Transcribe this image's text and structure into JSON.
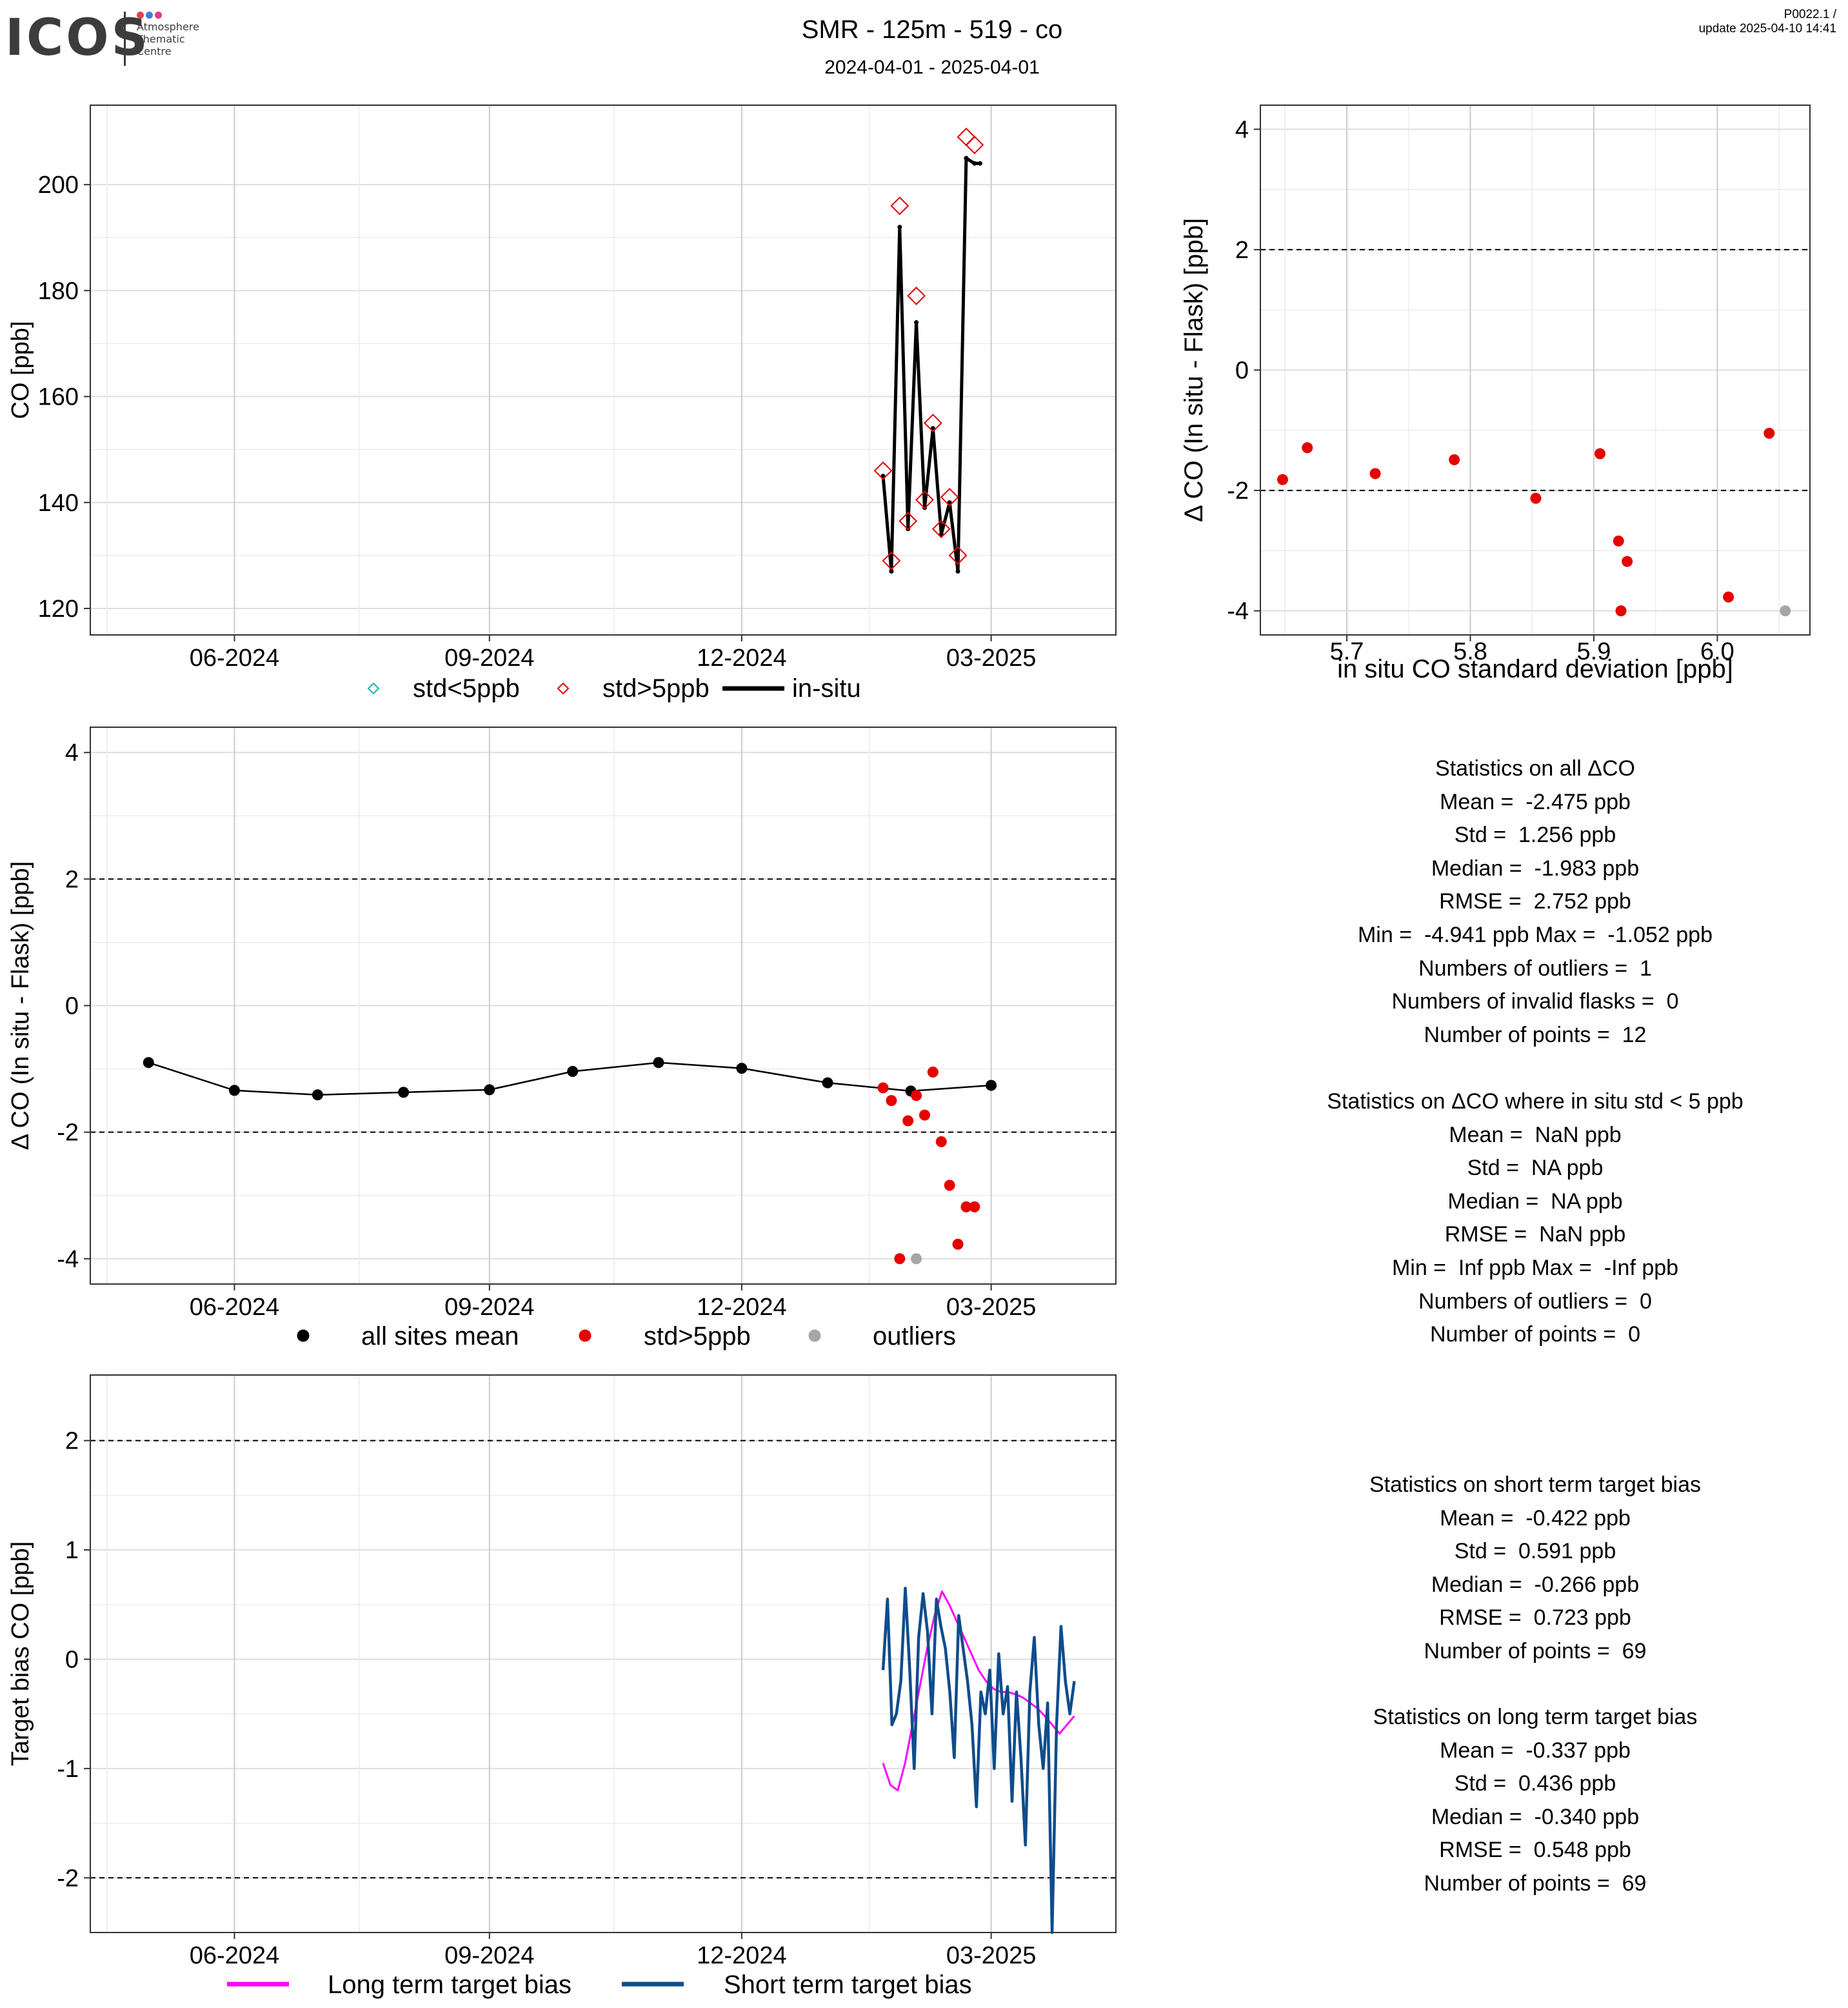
{
  "logo": {
    "text": "ICOS",
    "sub": [
      "Atmosphere",
      "Thematic",
      "Centre"
    ],
    "dot_colors": [
      "#e2404f",
      "#3f7fd2",
      "#e23a8d"
    ]
  },
  "header": {
    "title": "SMR - 125m - 519 - co",
    "subtitle": "2024-04-01 - 2025-04-01",
    "meta_line1": "P0022.1 /",
    "meta_line2": "update  2025-04-10 14:41"
  },
  "colors": {
    "flask_std_lt5": "#1bb5b5",
    "flask_std_gt5": "#e60000",
    "insitu": "#000000",
    "outlier": "#a6a6a6",
    "long_term": "#ff00ff",
    "short_term": "#0f4c8c"
  },
  "chart_data": [
    {
      "id": "timeseries",
      "type": "line",
      "ylabel": "CO [ppb]",
      "xlabel": "",
      "ylim": [
        115,
        215
      ],
      "yticks": [
        120,
        140,
        160,
        180,
        200
      ],
      "x_ticks": [
        "06-2024",
        "09-2024",
        "12-2024",
        "03-2025"
      ],
      "grid": true,
      "legend": [
        "std<5ppb",
        "std>5ppb",
        "in-situ"
      ],
      "legend_position": "bottom",
      "series": [
        {
          "name": "in-situ",
          "x": [
            "2025-01-21",
            "2025-01-24",
            "2025-01-27",
            "2025-01-30",
            "2025-02-02",
            "2025-02-05",
            "2025-02-08",
            "2025-02-11",
            "2025-02-14",
            "2025-02-17",
            "2025-02-20",
            "2025-02-23",
            "2025-02-25"
          ],
          "y": [
            145,
            127,
            192,
            135,
            174,
            139,
            154,
            134,
            140,
            127,
            205,
            204,
            204
          ]
        },
        {
          "name": "std>5ppb",
          "x": [
            "2025-01-21",
            "2025-01-24",
            "2025-01-27",
            "2025-01-30",
            "2025-02-02",
            "2025-02-05",
            "2025-02-08",
            "2025-02-11",
            "2025-02-14",
            "2025-02-17",
            "2025-02-20",
            "2025-02-23"
          ],
          "y": [
            146,
            129,
            196,
            136.5,
            179,
            140.5,
            155,
            135,
            141,
            130,
            209,
            207.5
          ]
        }
      ]
    },
    {
      "id": "scatter_std",
      "type": "scatter",
      "xlabel": "in situ CO standard deviation [ppb]",
      "ylabel": "Δ CO (In situ - Flask) [ppb]",
      "xlim": [
        5.63,
        6.075
      ],
      "ylim": [
        -4.4,
        4.4
      ],
      "xticks": [
        5.7,
        5.8,
        5.9,
        6.0
      ],
      "xtick_labels": [
        "5.7",
        "5.8",
        "5.9",
        "6.0"
      ],
      "yticks": [
        -4,
        -2,
        0,
        2,
        4
      ],
      "hlines": [
        2,
        -2
      ],
      "grid": true,
      "series": [
        {
          "name": "std>5ppb",
          "x": [
            5.648,
            5.668,
            5.723,
            5.787,
            5.853,
            5.905,
            5.92,
            5.922,
            5.927,
            6.009,
            6.042
          ],
          "y": [
            -1.82,
            -1.29,
            -1.72,
            -1.49,
            -2.13,
            -1.39,
            -2.84,
            -4.0,
            -3.18,
            -3.77,
            -1.05
          ]
        },
        {
          "name": "outliers",
          "x": [
            6.055
          ],
          "y": [
            -4.0
          ]
        }
      ]
    },
    {
      "id": "delta_timeseries",
      "type": "line",
      "ylabel": "Δ CO (In situ - Flask) [ppb]",
      "xlabel": "",
      "ylim": [
        -4.4,
        4.4
      ],
      "yticks": [
        -4,
        -2,
        0,
        2,
        4
      ],
      "hlines": [
        2,
        -2
      ],
      "x_ticks": [
        "06-2024",
        "09-2024",
        "12-2024",
        "03-2025"
      ],
      "grid": true,
      "legend": [
        "all sites mean",
        "std>5ppb",
        "outliers"
      ],
      "legend_position": "bottom",
      "series": [
        {
          "name": "all sites mean",
          "x": [
            "2024-05-01",
            "2024-06-01",
            "2024-07-01",
            "2024-08-01",
            "2024-09-01",
            "2024-10-01",
            "2024-11-01",
            "2024-12-01",
            "2025-01-01",
            "2025-01-31",
            "2025-03-01"
          ],
          "y": [
            -0.9,
            -1.34,
            -1.41,
            -1.37,
            -1.33,
            -1.04,
            -0.9,
            -0.99,
            -1.22,
            -1.35,
            -1.26
          ]
        },
        {
          "name": "std>5ppb",
          "x": [
            "2025-01-21",
            "2025-01-24",
            "2025-01-27",
            "2025-01-30",
            "2025-02-02",
            "2025-02-05",
            "2025-02-08",
            "2025-02-11",
            "2025-02-14",
            "2025-02-17",
            "2025-02-20",
            "2025-02-23"
          ],
          "y": [
            -1.3,
            -1.5,
            -4.0,
            -1.82,
            -1.42,
            -1.73,
            -1.05,
            -2.15,
            -2.84,
            -3.77,
            -3.18,
            -3.18
          ]
        },
        {
          "name": "outliers",
          "x": [
            "2025-02-02"
          ],
          "y": [
            -4.0
          ]
        }
      ]
    },
    {
      "id": "target_bias",
      "type": "line",
      "ylabel": "Target bias CO [ppb]",
      "xlabel": "",
      "ylim": [
        -2.5,
        2.6
      ],
      "yticks": [
        -2,
        -1,
        0,
        1,
        2
      ],
      "hlines": [
        2,
        -2
      ],
      "x_ticks": [
        "06-2024",
        "09-2024",
        "12-2024",
        "03-2025"
      ],
      "grid": true,
      "legend": [
        "Long term target bias",
        "Short term target bias"
      ],
      "legend_position": "bottom",
      "series": [
        {
          "name": "Long term target bias",
          "x_start": "2025-01-21",
          "x_end": "2025-03-31",
          "y": [
            -0.95,
            -1.15,
            -1.2,
            -0.95,
            -0.6,
            -0.25,
            0.1,
            0.4,
            0.62,
            0.5,
            0.35,
            0.2,
            0.05,
            -0.1,
            -0.2,
            -0.27,
            -0.3,
            -0.3,
            -0.32,
            -0.35,
            -0.4,
            -0.45,
            -0.52,
            -0.6,
            -0.68,
            -0.6,
            -0.52
          ]
        },
        {
          "name": "Short term target bias",
          "x_start": "2025-01-21",
          "x_end": "2025-03-31",
          "y": [
            -0.1,
            0.55,
            -0.6,
            -0.5,
            -0.2,
            0.65,
            -0.1,
            -1.0,
            0.2,
            0.6,
            0.25,
            -0.5,
            0.55,
            0.3,
            0.1,
            -0.3,
            -0.9,
            0.4,
            0.1,
            -0.2,
            -0.6,
            -1.35,
            -0.3,
            -0.5,
            -0.1,
            -1.0,
            0.05,
            -0.5,
            -0.25,
            -1.3,
            -0.3,
            -0.9,
            -1.7,
            -0.3,
            0.2,
            -0.6,
            -1.0,
            -0.4,
            -2.5,
            -0.6,
            0.3,
            -0.2,
            -0.5,
            -0.2
          ]
        }
      ]
    }
  ],
  "stats": {
    "all": {
      "header": "Statistics on all ΔCO",
      "lines": [
        "Mean =  -2.475 ppb",
        "Std =  1.256 ppb",
        "Median =  -1.983 ppb",
        "RMSE =  2.752 ppb",
        "Min =  -4.941 ppb Max =  -1.052 ppb",
        "Numbers of outliers =  1",
        "Numbers of invalid flasks =  0",
        "Number of points =  12"
      ]
    },
    "std_lt5": {
      "header": "Statistics on ΔCO where in situ std < 5 ppb",
      "lines": [
        "Mean =  NaN ppb",
        "Std =  NA ppb",
        "Median =  NA ppb",
        "RMSE =  NaN ppb",
        "Min =  Inf ppb Max =  -Inf ppb",
        "Numbers of outliers =  0",
        "Number of points =  0"
      ]
    },
    "short_term": {
      "header": "Statistics on short term target bias",
      "lines": [
        "Mean =  -0.422 ppb",
        "Std =  0.591 ppb",
        "Median =  -0.266 ppb",
        "RMSE =  0.723 ppb",
        "Number of points =  69"
      ]
    },
    "long_term": {
      "header": "Statistics on long term target bias",
      "lines": [
        "Mean =  -0.337 ppb",
        "Std =  0.436 ppb",
        "Median =  -0.340 ppb",
        "RMSE =  0.548 ppb",
        "Number of points =  69"
      ]
    }
  }
}
